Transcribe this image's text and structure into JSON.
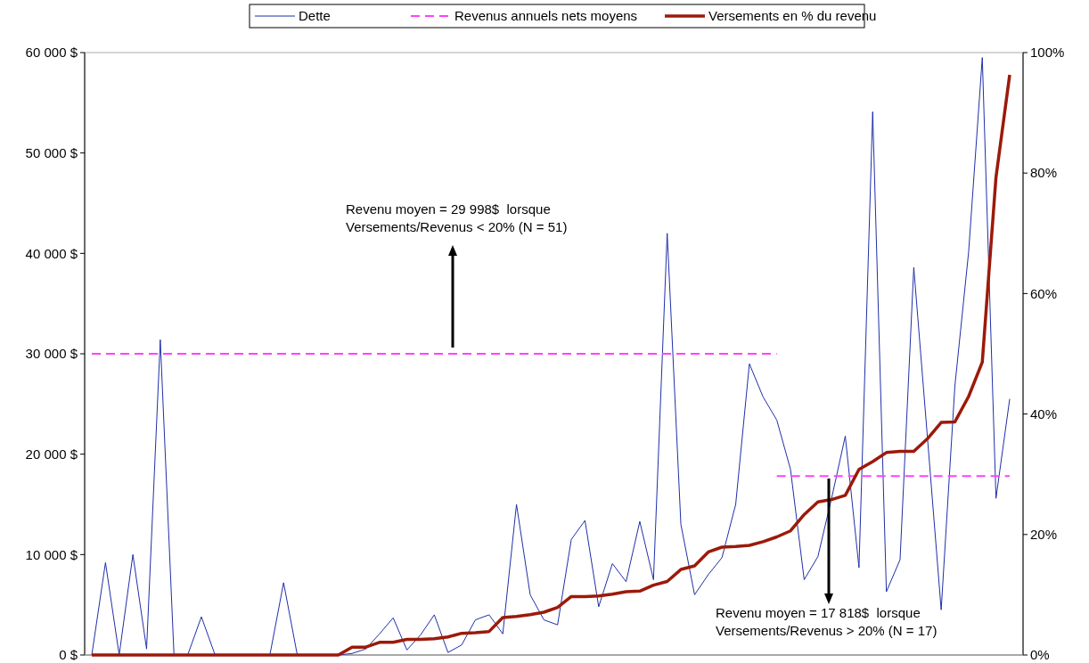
{
  "chart_data": {
    "type": "line",
    "categories": [
      null,
      null,
      null,
      null,
      null,
      null,
      null,
      null,
      null,
      null,
      null,
      null,
      null,
      null,
      null,
      null,
      null,
      null,
      null,
      null,
      null,
      null,
      null,
      null,
      null,
      null,
      null,
      null,
      null,
      null,
      null,
      null,
      null,
      null,
      null,
      null,
      null,
      null,
      null,
      null,
      null,
      null,
      null,
      null,
      null,
      null,
      null,
      null,
      null,
      null,
      null,
      null,
      null,
      null,
      null,
      null,
      null,
      null,
      null,
      null,
      null,
      null,
      null,
      null,
      null,
      null,
      null,
      null
    ],
    "series": [
      {
        "name": "Dette",
        "color": "#1f2fa8",
        "line_style": "solid",
        "values": [
          0,
          9200,
          0,
          10000,
          600,
          31400,
          0,
          0,
          3800,
          0,
          0,
          0,
          0,
          0,
          7200,
          0,
          0,
          0,
          0,
          150,
          600,
          2100,
          3700,
          500,
          2000,
          4000,
          250,
          1000,
          3500,
          4000,
          2100,
          15000,
          6000,
          3500,
          3000,
          11500,
          13400,
          4800,
          9100,
          7300,
          13300,
          7500,
          42000,
          13000,
          6000,
          8000,
          9700,
          15000,
          29000,
          25700,
          23400,
          18500,
          7500,
          9800,
          15600,
          21800,
          8700,
          54100,
          6300,
          9500,
          38600,
          21600,
          4500,
          26800,
          40100,
          59500,
          15600,
          25500
        ]
      },
      {
        "name": "Revenus annuels nets moyens",
        "color": "#ff40ff",
        "line_style": "dashed",
        "values": [
          29998,
          29998,
          29998,
          29998,
          29998,
          29998,
          29998,
          29998,
          29998,
          29998,
          29998,
          29998,
          29998,
          29998,
          29998,
          29998,
          29998,
          29998,
          29998,
          29998,
          29998,
          29998,
          29998,
          29998,
          29998,
          29998,
          29998,
          29998,
          29998,
          29998,
          29998,
          29998,
          29998,
          29998,
          29998,
          29998,
          29998,
          29998,
          29998,
          29998,
          29998,
          29998,
          29998,
          29998,
          29998,
          29998,
          29998,
          29998,
          29998,
          29998,
          29998,
          null,
          null,
          null,
          null,
          null,
          null,
          null,
          null,
          null,
          null,
          null,
          null,
          null,
          null,
          null,
          null,
          null
        ]
      },
      {
        "color": "#ff40ff",
        "line_style": "dashed",
        "values": [
          null,
          null,
          null,
          null,
          null,
          null,
          null,
          null,
          null,
          null,
          null,
          null,
          null,
          null,
          null,
          null,
          null,
          null,
          null,
          null,
          null,
          null,
          null,
          null,
          null,
          null,
          null,
          null,
          null,
          null,
          null,
          null,
          null,
          null,
          null,
          null,
          null,
          null,
          null,
          null,
          null,
          null,
          null,
          null,
          null,
          null,
          null,
          null,
          null,
          null,
          17818,
          17818,
          17818,
          17818,
          17818,
          17818,
          17818,
          17818,
          17818,
          17818,
          17818,
          17818,
          17818,
          17818,
          17818,
          17818,
          17818,
          17818
        ]
      },
      {
        "name": "Versements en % du revenu",
        "color": "#9b1a0a",
        "line_style": "solid",
        "axis": "y2",
        "values": [
          0,
          0,
          0,
          0,
          0,
          0,
          0,
          0,
          0,
          0,
          0,
          0,
          0,
          0,
          0,
          0,
          0,
          0,
          0,
          1.3,
          1.3,
          2.1,
          2.1,
          2.6,
          2.6,
          2.7,
          3.0,
          3.6,
          3.7,
          3.9,
          6.2,
          6.4,
          6.7,
          7.1,
          7.9,
          9.7,
          9.7,
          9.8,
          10.1,
          10.5,
          10.6,
          11.6,
          12.2,
          14.2,
          14.8,
          17.1,
          17.9,
          18.0,
          18.2,
          18.8,
          19.6,
          20.6,
          23.3,
          25.4,
          25.8,
          26.5,
          30.8,
          32.1,
          33.6,
          33.8,
          33.8,
          35.9,
          38.6,
          38.7,
          42.9,
          48.6,
          79.3,
          96.3
        ]
      }
    ],
    "ylim": [
      0,
      60000
    ],
    "yticks": [
      {
        "value": 0,
        "label": "0 $"
      },
      {
        "value": 10000,
        "label": "10 000 $"
      },
      {
        "value": 20000,
        "label": "20 000 $"
      },
      {
        "value": 30000,
        "label": "30 000 $"
      },
      {
        "value": 40000,
        "label": "40 000 $"
      },
      {
        "value": 50000,
        "label": "50 000 $"
      },
      {
        "value": 60000,
        "label": "60 000 $"
      }
    ],
    "y2lim": [
      0,
      100
    ],
    "y2ticks": [
      {
        "value": 0,
        "label": "0%"
      },
      {
        "value": 20,
        "label": "20%"
      },
      {
        "value": 40,
        "label": "40%"
      },
      {
        "value": 60,
        "label": "60%"
      },
      {
        "value": 80,
        "label": "80%"
      },
      {
        "value": 100,
        "label": "100%"
      }
    ],
    "annotations": [
      "Revenu moyen = 29 998$  lorsque\nVersements/Revenus < 20% (N = 51)",
      "Revenu moyen = 17 818$  lorsque\nVersements/Revenus > 20% (N = 17)"
    ],
    "legend": "top",
    "grid": false,
    "marker": "none"
  }
}
